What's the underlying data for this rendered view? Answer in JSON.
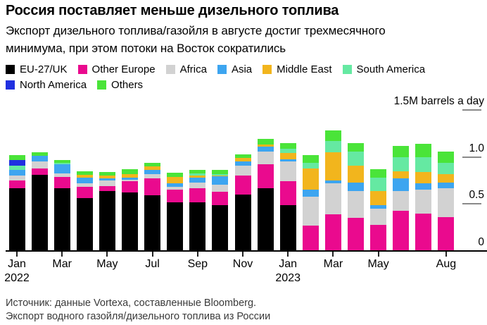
{
  "header": {
    "title": "Россия поставляет меньше дизельного топлива",
    "subtitle_line1": "Экспорт дизельного топлива/газойля в августе достиг трехмесячного",
    "subtitle_line2": "минимума, при этом потоки на Восток сократились"
  },
  "legend": {
    "rows": [
      [
        {
          "label": "EU-27/UK",
          "color": "#000000"
        },
        {
          "label": "Other Europe",
          "color": "#ea0a8e"
        },
        {
          "label": "Africa",
          "color": "#d2d2d2"
        },
        {
          "label": "Asia",
          "color": "#3da5f0"
        },
        {
          "label": "Middle East",
          "color": "#f2b51d"
        },
        {
          "label": "South America",
          "color": "#65e9a2"
        }
      ],
      [
        {
          "label": "North America",
          "color": "#2030e0"
        },
        {
          "label": "Others",
          "color": "#4ae439"
        }
      ]
    ]
  },
  "chart_data": {
    "type": "bar",
    "stacked": true,
    "title": "Россия поставляет меньше дизельного топлива",
    "ylabel": "M barrels a day",
    "ylim": [
      0,
      1.5
    ],
    "grid": false,
    "legend_position": "top",
    "categories": [
      "Jan 2022",
      "Feb 2022",
      "Mar 2022",
      "Apr 2022",
      "May 2022",
      "Jun 2022",
      "Jul 2022",
      "Aug 2022",
      "Sep 2022",
      "Oct 2022",
      "Nov 2022",
      "Dec 2022",
      "Jan 2023",
      "Feb 2023",
      "Mar 2023",
      "Apr 2023",
      "May 2023",
      "Jun 2023",
      "Jul 2023",
      "Aug 2023"
    ],
    "series": [
      {
        "name": "EU-27/UK",
        "color": "#000000",
        "values": [
          0.67,
          0.81,
          0.67,
          0.56,
          0.64,
          0.62,
          0.59,
          0.52,
          0.52,
          0.49,
          0.6,
          0.67,
          0.49,
          0,
          0,
          0,
          0,
          0,
          0,
          0
        ]
      },
      {
        "name": "Other Europe",
        "color": "#ea0a8e",
        "values": [
          0.08,
          0.07,
          0.12,
          0.12,
          0.05,
          0.12,
          0.18,
          0.13,
          0.15,
          0.14,
          0.2,
          0.25,
          0.25,
          0.27,
          0.39,
          0.35,
          0.28,
          0.43,
          0.4,
          0.36
        ]
      },
      {
        "name": "Africa",
        "color": "#d2d2d2",
        "values": [
          0.05,
          0.07,
          0.035,
          0.04,
          0.06,
          0.02,
          0.05,
          0.03,
          0.055,
          0.075,
          0.11,
          0.135,
          0.21,
          0.31,
          0.33,
          0.29,
          0.17,
          0.21,
          0.25,
          0.31
        ]
      },
      {
        "name": "Asia",
        "color": "#3da5f0",
        "values": [
          0.06,
          0.06,
          0.095,
          0.06,
          0.02,
          0.02,
          0.04,
          0.04,
          0.055,
          0.09,
          0.04,
          0.055,
          0.025,
          0.07,
          0.03,
          0.09,
          0.04,
          0.13,
          0.07,
          0.06
        ]
      },
      {
        "name": "Middle East",
        "color": "#f2b51d",
        "values": [
          0,
          0,
          0,
          0.03,
          0.03,
          0.04,
          0.04,
          0.07,
          0.025,
          0.01,
          0.04,
          0.02,
          0.065,
          0.23,
          0.3,
          0.18,
          0.15,
          0.08,
          0.12,
          0.09
        ]
      },
      {
        "name": "South America",
        "color": "#65e9a2",
        "values": [
          0.05,
          0,
          0.015,
          0,
          0,
          0,
          0,
          0,
          0.02,
          0.015,
          0,
          0,
          0.05,
          0.06,
          0.12,
          0.15,
          0.14,
          0.15,
          0.16,
          0.12
        ]
      },
      {
        "name": "North America",
        "color": "#2030e0",
        "values": [
          0.06,
          0,
          0,
          0,
          0,
          0,
          0,
          0,
          0,
          0,
          0,
          0,
          0,
          0,
          0,
          0,
          0,
          0,
          0,
          0
        ]
      },
      {
        "name": "Others",
        "color": "#4ae439",
        "values": [
          0.05,
          0.04,
          0.035,
          0.04,
          0.04,
          0.05,
          0.04,
          0.04,
          0.04,
          0.04,
          0.04,
          0.06,
          0.06,
          0.08,
          0.11,
          0.09,
          0.09,
          0.12,
          0.14,
          0.12
        ]
      }
    ],
    "y_axis": {
      "top_label": "1.5M barrels a day",
      "max": 1.5,
      "ticks": [
        {
          "value": 1.5,
          "label": ""
        },
        {
          "value": 1.0,
          "label": "1.0"
        },
        {
          "value": 0.5,
          "label": "0.5"
        },
        {
          "value": 0,
          "label": "0"
        }
      ]
    },
    "x_ticks": [
      {
        "index": 0,
        "label": "Jan",
        "sub": "2022"
      },
      {
        "index": 2,
        "label": "Mar"
      },
      {
        "index": 4,
        "label": "May"
      },
      {
        "index": 6,
        "label": "Jul"
      },
      {
        "index": 8,
        "label": "Sep"
      },
      {
        "index": 10,
        "label": "Nov"
      },
      {
        "index": 12,
        "label": "Jan",
        "sub": "2023"
      },
      {
        "index": 14,
        "label": "Mar"
      },
      {
        "index": 16,
        "label": "May"
      },
      {
        "index": 19,
        "label": "Aug"
      }
    ]
  },
  "footer": {
    "source_line1": "Источник: данные Vortexa, составленные Bloomberg.",
    "source_line2": "Экспорт водного газойля/дизельного топлива из России"
  }
}
